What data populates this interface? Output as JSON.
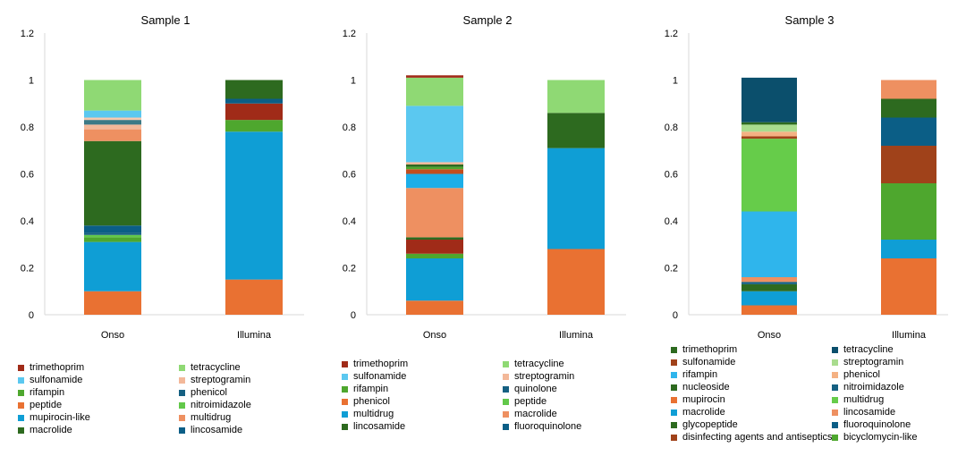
{
  "chart_data": [
    {
      "type": "bar",
      "stacked": true,
      "title": "Sample 1",
      "categories": [
        "Onso",
        "Illumina"
      ],
      "ylim": [
        0,
        1.2
      ],
      "yticks": [
        "0",
        "0.2",
        "0.4",
        "0.6",
        "0.8",
        "1",
        "1.2"
      ],
      "series": [
        {
          "name": "peptide",
          "color": "#E97132",
          "values": [
            0.1,
            0.15
          ]
        },
        {
          "name": "mupirocin-like",
          "color": "#0F9ED5",
          "values": [
            0.21,
            0.63
          ]
        },
        {
          "name": "rifampin",
          "color": "#4EA72E",
          "values": [
            0.02,
            0.05
          ]
        },
        {
          "name": "nitroimidazole",
          "color": "#62C84A",
          "values": [
            0.01,
            0.0
          ]
        },
        {
          "name": "phenicol",
          "color": "#156082",
          "values": [
            0.01,
            0.0
          ]
        },
        {
          "name": "trimethoprim",
          "color": "#A02B18",
          "values": [
            0.0,
            0.07
          ]
        },
        {
          "name": "lincosamide",
          "color": "#0B5E86",
          "values": [
            0.03,
            0.02
          ]
        },
        {
          "name": "macrolide",
          "color": "#2D6A1F",
          "values": [
            0.36,
            0.08
          ]
        },
        {
          "name": "multidrug",
          "color": "#EE9061",
          "values": [
            0.05,
            0.0
          ]
        },
        {
          "name": "streptogramin",
          "color": "#F3B899",
          "values": [
            0.02,
            0.0
          ]
        },
        {
          "name": "phenicol",
          "color": "#3C7A86",
          "values": [
            0.02,
            0.0
          ]
        },
        {
          "name": "streptogramin",
          "color": "#F7C9B0",
          "values": [
            0.01,
            0.0
          ]
        },
        {
          "name": "sulfonamide",
          "color": "#5BC8F0",
          "values": [
            0.03,
            0.0
          ]
        },
        {
          "name": "tetracycline",
          "color": "#8FD974",
          "values": [
            0.13,
            0.0
          ]
        }
      ],
      "legend": [
        {
          "name": "trimethoprim",
          "color": "#A02B18"
        },
        {
          "name": "tetracycline",
          "color": "#8FD974"
        },
        {
          "name": "sulfonamide",
          "color": "#5BC8F0"
        },
        {
          "name": "streptogramin",
          "color": "#F3B899"
        },
        {
          "name": "rifampin",
          "color": "#4EA72E"
        },
        {
          "name": "phenicol",
          "color": "#156082"
        },
        {
          "name": "peptide",
          "color": "#E97132"
        },
        {
          "name": "nitroimidazole",
          "color": "#62C84A"
        },
        {
          "name": "mupirocin-like",
          "color": "#0F9ED5"
        },
        {
          "name": "multidrug",
          "color": "#EE9061"
        },
        {
          "name": "macrolide",
          "color": "#2D6A1F"
        },
        {
          "name": "lincosamide",
          "color": "#0B5E86"
        }
      ]
    },
    {
      "type": "bar",
      "stacked": true,
      "title": "Sample 2",
      "categories": [
        "Onso",
        "Illumina"
      ],
      "ylim": [
        0,
        1.2
      ],
      "yticks": [
        "0",
        "0.2",
        "0.4",
        "0.6",
        "0.8",
        "1",
        "1.2"
      ],
      "series": [
        {
          "name": "phenicol",
          "color": "#E97132",
          "values": [
            0.06,
            0.28
          ]
        },
        {
          "name": "multidrug",
          "color": "#0F9ED5",
          "values": [
            0.18,
            0.43
          ]
        },
        {
          "name": "rifampin",
          "color": "#4EA72E",
          "values": [
            0.02,
            0.0
          ]
        },
        {
          "name": "trimethoprim",
          "color": "#A02B18",
          "values": [
            0.06,
            0.0
          ]
        },
        {
          "name": "lincosamide",
          "color": "#2D6A1F",
          "values": [
            0.01,
            0.15
          ]
        },
        {
          "name": "macrolide",
          "color": "#EE9061",
          "values": [
            0.21,
            0.0
          ]
        },
        {
          "name": "multidrug",
          "color": "#1CAEE8",
          "values": [
            0.06,
            0.0
          ]
        },
        {
          "name": "phenicol",
          "color": "#C24D1E",
          "values": [
            0.02,
            0.0
          ]
        },
        {
          "name": "peptide",
          "color": "#4EA72E",
          "values": [
            0.01,
            0.0
          ]
        },
        {
          "name": "lincosamide",
          "color": "#2D6A1F",
          "values": [
            0.01,
            0.0
          ]
        },
        {
          "name": "streptogramin",
          "color": "#F3B899",
          "values": [
            0.01,
            0.0
          ]
        },
        {
          "name": "sulfonamide",
          "color": "#5BC8F0",
          "values": [
            0.24,
            0.0
          ]
        },
        {
          "name": "tetracycline",
          "color": "#8FD974",
          "values": [
            0.12,
            0.14
          ]
        },
        {
          "name": "trimethoprim",
          "color": "#A02B18",
          "values": [
            0.01,
            0.0
          ]
        }
      ],
      "legend": [
        {
          "name": "trimethoprim",
          "color": "#A02B18"
        },
        {
          "name": "tetracycline",
          "color": "#8FD974"
        },
        {
          "name": "sulfonamide",
          "color": "#5BC8F0"
        },
        {
          "name": "streptogramin",
          "color": "#F3B899"
        },
        {
          "name": "rifampin",
          "color": "#4EA72E"
        },
        {
          "name": "quinolone",
          "color": "#156082"
        },
        {
          "name": "phenicol",
          "color": "#E97132"
        },
        {
          "name": "peptide",
          "color": "#62C84A"
        },
        {
          "name": "multidrug",
          "color": "#0F9ED5"
        },
        {
          "name": "macrolide",
          "color": "#EE9061"
        },
        {
          "name": "lincosamide",
          "color": "#2D6A1F"
        },
        {
          "name": "fluoroquinolone",
          "color": "#0B5E86"
        }
      ]
    },
    {
      "type": "bar",
      "stacked": true,
      "title": "Sample 3",
      "categories": [
        "Onso",
        "Illumina"
      ],
      "ylim": [
        0,
        1.2
      ],
      "yticks": [
        "0",
        "0.2",
        "0.4",
        "0.6",
        "0.8",
        "1",
        "1.2"
      ],
      "series": [
        {
          "name": "mupirocin",
          "color": "#E97132",
          "values": [
            0.04,
            0.24
          ]
        },
        {
          "name": "macrolide",
          "color": "#0F9ED5",
          "values": [
            0.06,
            0.08
          ]
        },
        {
          "name": "glycopeptide",
          "color": "#2D6A1F",
          "values": [
            0.03,
            0.0
          ]
        },
        {
          "name": "nitroimidazole",
          "color": "#156082",
          "values": [
            0.01,
            0.0
          ]
        },
        {
          "name": "lincosamide",
          "color": "#EE9061",
          "values": [
            0.02,
            0.0
          ]
        },
        {
          "name": "rifampin",
          "color": "#2FB5EC",
          "values": [
            0.28,
            0.0
          ]
        },
        {
          "name": "bicyclomycin-like",
          "color": "#4EA72E",
          "values": [
            0.0,
            0.24
          ]
        },
        {
          "name": "multidrug",
          "color": "#66CC4A",
          "values": [
            0.31,
            0.0
          ]
        },
        {
          "name": "sulfonamide",
          "color": "#A0421A",
          "values": [
            0.01,
            0.16
          ]
        },
        {
          "name": "phenicol",
          "color": "#F4B183",
          "values": [
            0.02,
            0.0
          ]
        },
        {
          "name": "streptogramin",
          "color": "#A9DC8E",
          "values": [
            0.03,
            0.0
          ]
        },
        {
          "name": "fluoroquinolone",
          "color": "#0B5E86",
          "values": [
            0.0,
            0.12
          ]
        },
        {
          "name": "nucleoside",
          "color": "#2D6A1F",
          "values": [
            0.01,
            0.08
          ]
        },
        {
          "name": "tetracycline",
          "color": "#0B4F6C",
          "values": [
            0.19,
            0.0
          ]
        },
        {
          "name": "disinfecting agents and antiseptics",
          "color": "#EE9061",
          "values": [
            0.0,
            0.08
          ]
        }
      ],
      "legend": [
        {
          "name": "trimethoprim",
          "color": "#2D6A1F"
        },
        {
          "name": "tetracycline",
          "color": "#0B4F6C"
        },
        {
          "name": "sulfonamide",
          "color": "#A0421A"
        },
        {
          "name": "streptogramin",
          "color": "#A9DC8E"
        },
        {
          "name": "rifampin",
          "color": "#2FB5EC"
        },
        {
          "name": "phenicol",
          "color": "#F4B183"
        },
        {
          "name": "nucleoside",
          "color": "#2D6A1F"
        },
        {
          "name": "nitroimidazole",
          "color": "#156082"
        },
        {
          "name": "mupirocin",
          "color": "#E97132"
        },
        {
          "name": "multidrug",
          "color": "#66CC4A"
        },
        {
          "name": "macrolide",
          "color": "#0F9ED5"
        },
        {
          "name": "lincosamide",
          "color": "#EE9061"
        },
        {
          "name": "glycopeptide",
          "color": "#2D6A1F"
        },
        {
          "name": "fluoroquinolone",
          "color": "#0B5E86"
        },
        {
          "name": "disinfecting agents and antiseptics",
          "color": "#A0421A"
        },
        {
          "name": "bicyclomycin-like",
          "color": "#4EA72E"
        }
      ]
    }
  ]
}
